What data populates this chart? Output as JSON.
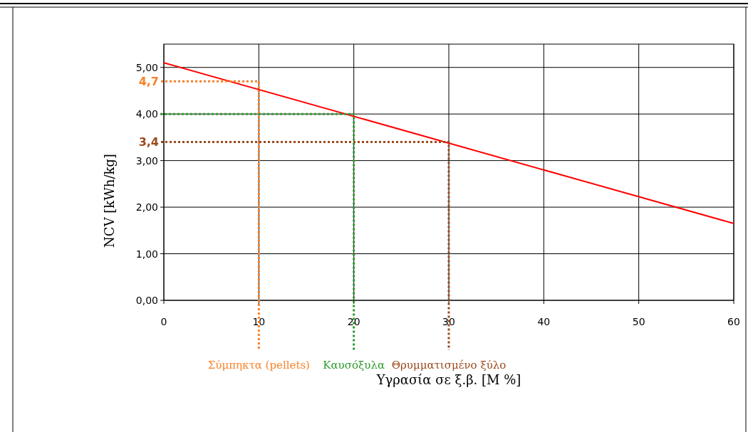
{
  "chart_data": {
    "type": "line",
    "xlabel": "Υγρασία σε ξ.β. [M %]",
    "ylabel": "NCV [kWh/kg]",
    "xlim": [
      0,
      60
    ],
    "xticks": [
      0,
      10,
      20,
      30,
      40,
      50,
      60
    ],
    "ylim": [
      0,
      5.5
    ],
    "yticks": [
      {
        "value": 0,
        "label": "0,00"
      },
      {
        "value": 1,
        "label": "1,00"
      },
      {
        "value": 2,
        "label": "2,00"
      },
      {
        "value": 3,
        "label": "3,00"
      },
      {
        "value": 4,
        "label": "4,00"
      },
      {
        "value": 5,
        "label": "5,00"
      }
    ],
    "grid": true,
    "series": [
      {
        "color": "#ff0000",
        "x": [
          0,
          60
        ],
        "values": [
          5.1,
          1.65
        ],
        "line_style": "solid"
      },
      {
        "name": "Σύμπηκτα (pellets)",
        "color": "#f7822a",
        "x": [
          0,
          10,
          10
        ],
        "values": [
          4.7,
          4.7,
          0
        ],
        "line_style": "dotted",
        "value_labels": [
          "4,7",
          null,
          null
        ]
      },
      {
        "name": "Καυσόξυλα",
        "color": "#2e9a2e",
        "x": [
          0,
          20,
          20
        ],
        "values": [
          4,
          4,
          0
        ],
        "line_style": "dotted"
      },
      {
        "name": "Θρυμματισμένο ξύλο",
        "color": "#9b4a1c",
        "x": [
          0,
          30,
          30
        ],
        "values": [
          3.4,
          3.4,
          0
        ],
        "line_style": "dotted",
        "value_labels": [
          "3,4",
          null,
          null
        ]
      }
    ]
  }
}
